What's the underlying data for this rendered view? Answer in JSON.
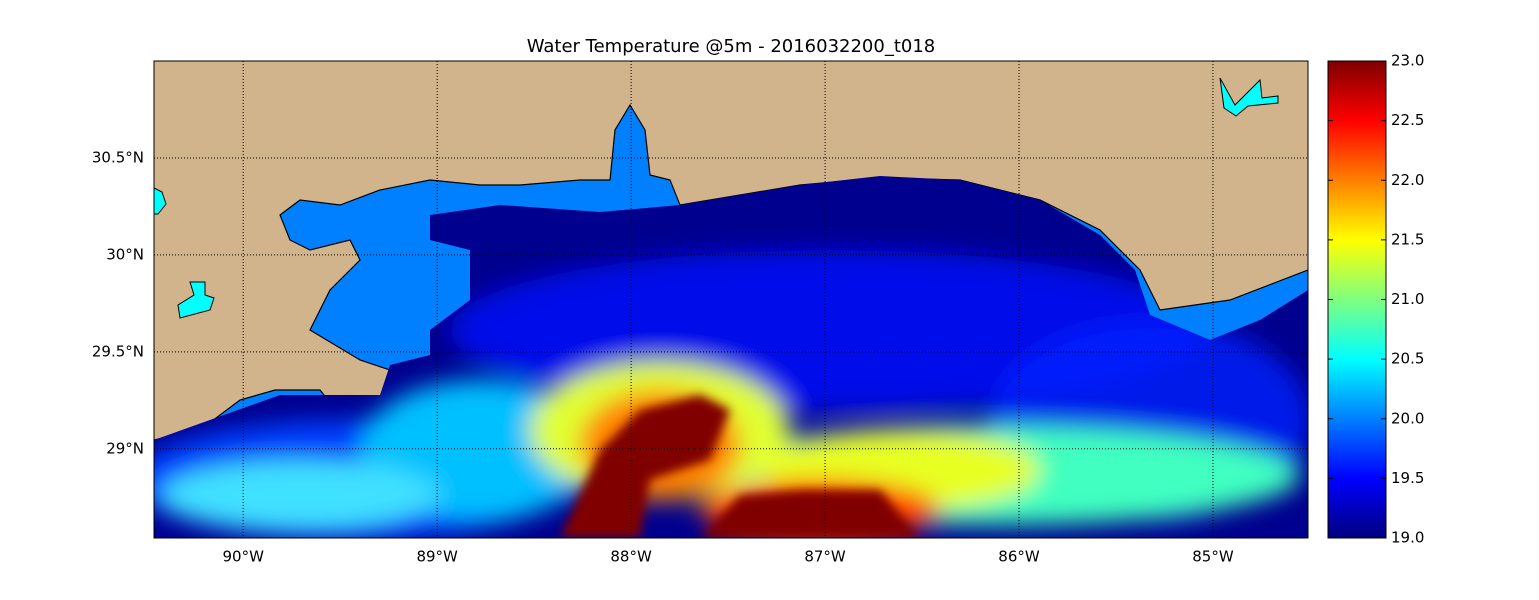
{
  "chart_data": {
    "type": "map",
    "title": "Water Temperature @5m - 2016032200_t018",
    "xlim": [
      -90.46,
      -84.51
    ],
    "ylim": [
      28.54,
      31.0
    ],
    "xticks": [
      {
        "value": -90,
        "label": "90°W"
      },
      {
        "value": -89,
        "label": "89°W"
      },
      {
        "value": -88,
        "label": "88°W"
      },
      {
        "value": -87,
        "label": "87°W"
      },
      {
        "value": -86,
        "label": "86°W"
      },
      {
        "value": -85,
        "label": "85°W"
      }
    ],
    "yticks": [
      {
        "value": 29,
        "label": "29°N"
      },
      {
        "value": 29.5,
        "label": "29.5°N"
      },
      {
        "value": 30,
        "label": "30°N"
      },
      {
        "value": 30.5,
        "label": "30.5°N"
      }
    ],
    "grid": true,
    "colormap": "jet",
    "colorbar": {
      "lim": [
        19,
        23
      ],
      "ticks": [
        {
          "value": 19,
          "label": "19.0"
        },
        19.5,
        {
          "value": 20,
          "label": "20.0"
        },
        20.5,
        {
          "value": 21,
          "label": "21.0"
        },
        21.5,
        {
          "value": 22,
          "label": "22.0"
        },
        22.5,
        {
          "value": 23,
          "label": "23.0"
        }
      ]
    }
  }
}
